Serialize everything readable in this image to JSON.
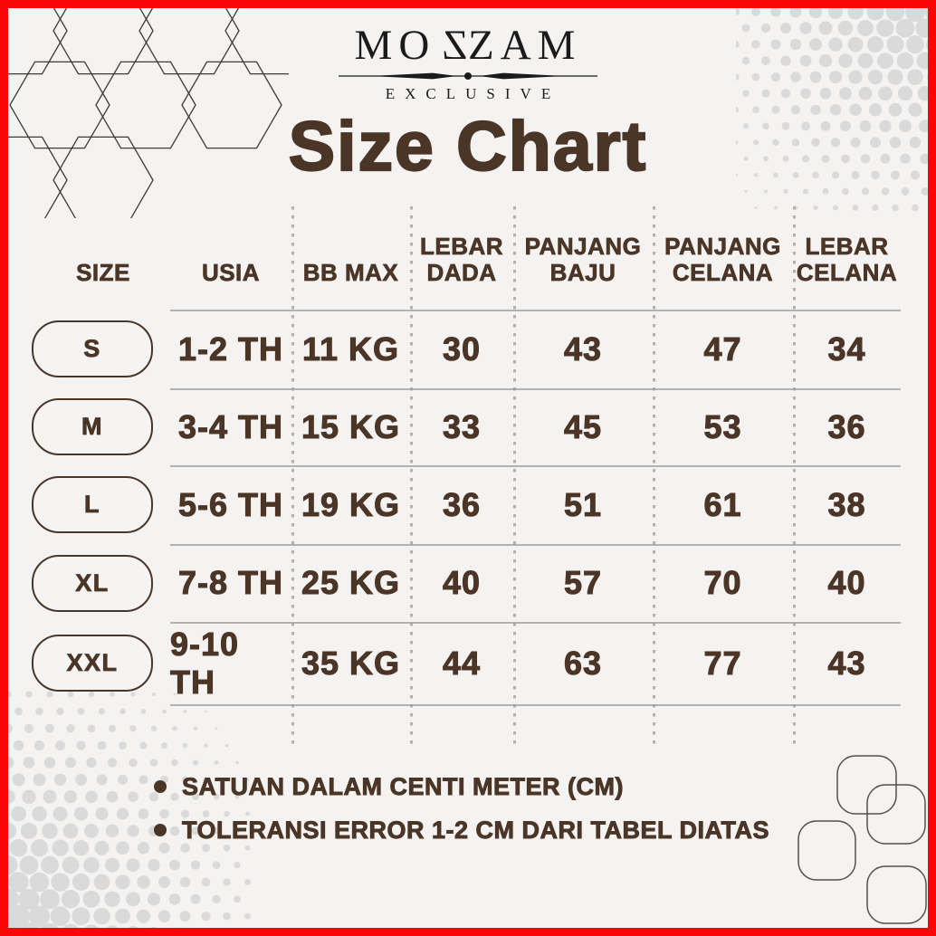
{
  "brand": {
    "prefix": "MO",
    "mirrored_letter": "Z",
    "suffix": "ZAM",
    "subtitle": "EXCLUSIVE"
  },
  "title": "Size Chart",
  "table": {
    "columns": [
      "SIZE",
      "USIA",
      "BB MAX",
      "LEBAR DADA",
      "PANJANG BAJU",
      "PANJANG CELANA",
      "LEBAR CELANA"
    ],
    "rows": [
      {
        "size": "S",
        "values": [
          "1-2 TH",
          "11 KG",
          "30",
          "43",
          "47",
          "34"
        ]
      },
      {
        "size": "M",
        "values": [
          "3-4 TH",
          "15 KG",
          "33",
          "45",
          "53",
          "36"
        ]
      },
      {
        "size": "L",
        "values": [
          "5-6 TH",
          "19 KG",
          "36",
          "51",
          "61",
          "38"
        ]
      },
      {
        "size": "XL",
        "values": [
          "7-8 TH",
          "25 KG",
          "40",
          "57",
          "70",
          "40"
        ]
      },
      {
        "size": "XXL",
        "values": [
          "9-10 TH",
          "35 KG",
          "44",
          "63",
          "77",
          "43"
        ]
      }
    ]
  },
  "notes": {
    "bullet": "•",
    "items": [
      "SATUAN DALAM CENTI METER (CM)",
      "TOLERANSI ERROR 1-2 CM DARI TABEL DIATAS"
    ]
  },
  "icons": {
    "hexagon_pattern": "hexagon-outline-grid",
    "halftone_top_right": "halftone-dots",
    "halftone_bottom_left": "halftone-dots",
    "rounded_squares": "rounded-square-outlines",
    "note_bullet": "filled-circle"
  },
  "colors": {
    "frame_red": "#f90505",
    "text_brown": "#4a3527",
    "logo_black": "#1b1b1b",
    "rule_gray": "#9c9c9c",
    "halftone_gray": "#dadada",
    "background": "#f4f3f1"
  }
}
